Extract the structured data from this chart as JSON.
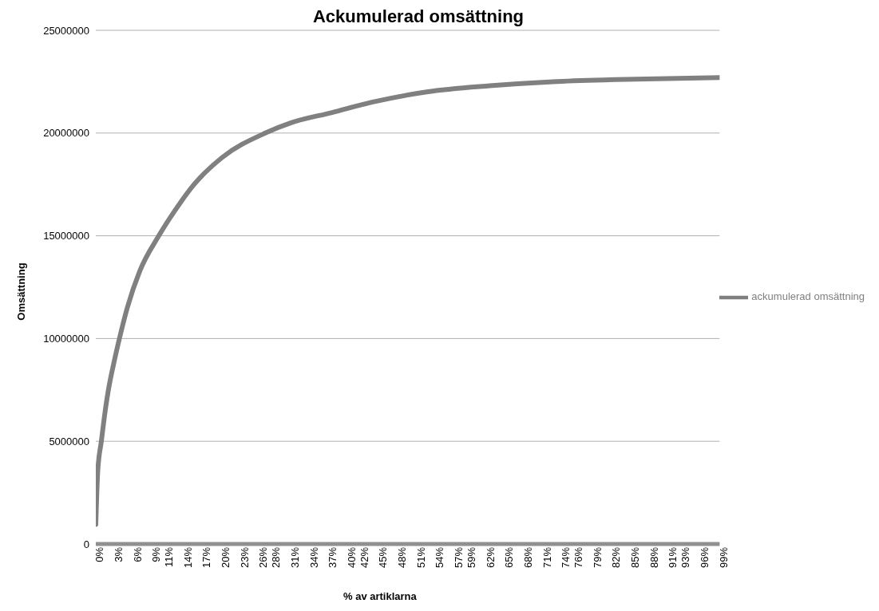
{
  "chart_data": {
    "type": "line",
    "title": "Ackumulerad omsättning",
    "xlabel": "% av artiklarna",
    "ylabel": "Omsättning",
    "x": [
      0,
      0.3,
      0.88,
      1.5,
      2,
      3,
      3.75,
      5,
      7,
      10,
      12.5,
      15.6,
      20,
      26.9,
      31,
      37.5,
      43.8,
      52.5,
      62.5,
      72.5,
      82.5,
      99
    ],
    "series": [
      {
        "name": "ackumulerad omsättning",
        "color": "#808080",
        "values": [
          950000,
          3500000,
          5000000,
          6500000,
          7500000,
          9000000,
          10000000,
          11500000,
          13300000,
          15000000,
          16200000,
          17500000,
          18800000,
          20000000,
          20500000,
          21000000,
          21500000,
          22000000,
          22300000,
          22500000,
          22600000,
          22700000
        ]
      }
    ],
    "xlim": [
      0,
      99
    ],
    "xticks": [
      {
        "value": 0,
        "label": "0%"
      },
      {
        "value": 3,
        "label": "3%"
      },
      {
        "value": 6,
        "label": "6%"
      },
      {
        "value": 9,
        "label": "9%"
      },
      {
        "value": 11,
        "label": "11%"
      },
      {
        "value": 14,
        "label": "14%"
      },
      {
        "value": 17,
        "label": "17%"
      },
      {
        "value": 20,
        "label": "20%"
      },
      {
        "value": 23,
        "label": "23%"
      },
      {
        "value": 26,
        "label": "26%"
      },
      {
        "value": 28,
        "label": "28%"
      },
      {
        "value": 31,
        "label": "31%"
      },
      {
        "value": 34,
        "label": "34%"
      },
      {
        "value": 37,
        "label": "37%"
      },
      {
        "value": 40,
        "label": "40%"
      },
      {
        "value": 42,
        "label": "42%"
      },
      {
        "value": 45,
        "label": "45%"
      },
      {
        "value": 48,
        "label": "48%"
      },
      {
        "value": 51,
        "label": "51%"
      },
      {
        "value": 54,
        "label": "54%"
      },
      {
        "value": 57,
        "label": "57%"
      },
      {
        "value": 59,
        "label": "59%"
      },
      {
        "value": 62,
        "label": "62%"
      },
      {
        "value": 65,
        "label": "65%"
      },
      {
        "value": 68,
        "label": "68%"
      },
      {
        "value": 71,
        "label": "71%"
      },
      {
        "value": 74,
        "label": "74%"
      },
      {
        "value": 76,
        "label": "76%"
      },
      {
        "value": 79,
        "label": "79%"
      },
      {
        "value": 82,
        "label": "82%"
      },
      {
        "value": 85,
        "label": "85%"
      },
      {
        "value": 88,
        "label": "88%"
      },
      {
        "value": 91,
        "label": "91%"
      },
      {
        "value": 93,
        "label": "93%"
      },
      {
        "value": 96,
        "label": "96%"
      },
      {
        "value": 99,
        "label": "99%"
      }
    ],
    "ylim": [
      0,
      25000000
    ],
    "yticks": [
      0,
      5000000,
      10000000,
      15000000,
      20000000,
      25000000
    ],
    "grid": "y",
    "legend": "right",
    "marker": "none",
    "line_style": "solid"
  }
}
